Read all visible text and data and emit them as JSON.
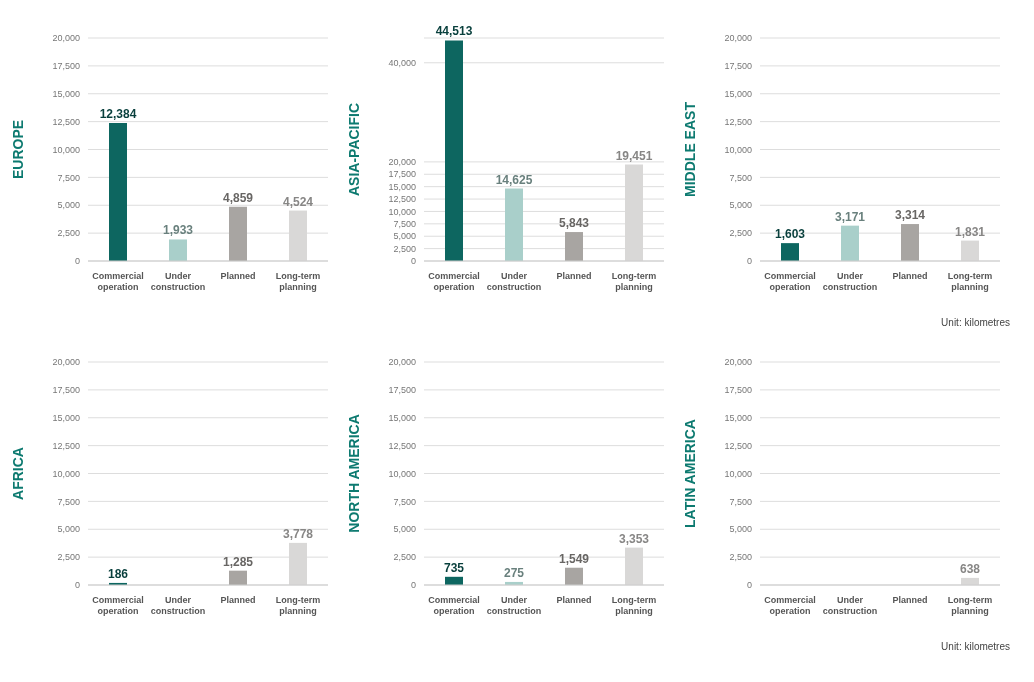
{
  "chart_data": [
    {
      "type": "bar",
      "ylabel": "EUROPE",
      "categories": [
        "Commercial operation",
        "Under construction",
        "Planned",
        "Long-term planning"
      ],
      "values": [
        12384,
        1933,
        4859,
        4524
      ],
      "value_labels": [
        "12,384",
        "1,933",
        "4,859",
        "4,524"
      ],
      "colors": [
        "#0d6660",
        "#a9cfca",
        "#a8a5a2",
        "#d9d8d7"
      ],
      "ylim": [
        0,
        20000
      ],
      "yticks": [
        {
          "value": 0,
          "label": "0"
        },
        {
          "value": 2500,
          "label": "2,500"
        },
        {
          "value": 5000,
          "label": "5,000"
        },
        {
          "value": 7500,
          "label": "7,500"
        },
        {
          "value": 10000,
          "label": "10,000"
        },
        {
          "value": 12500,
          "label": "12,500"
        },
        {
          "value": 15000,
          "label": "15,000"
        },
        {
          "value": 17500,
          "label": "17,500"
        },
        {
          "value": 20000,
          "label": "20,000"
        }
      ],
      "grid": "y"
    },
    {
      "type": "bar",
      "ylabel": "ASIA-PACIFIC",
      "categories": [
        "Commercial operation",
        "Under construction",
        "Planned",
        "Long-term planning"
      ],
      "values": [
        44513,
        14625,
        5843,
        19451
      ],
      "value_labels": [
        "44,513",
        "14,625",
        "5,843",
        "19,451"
      ],
      "colors": [
        "#0d6660",
        "#a9cfca",
        "#a8a5a2",
        "#d9d8d7"
      ],
      "ylim": [
        0,
        45000
      ],
      "yticks": [
        {
          "value": 0,
          "label": "0"
        },
        {
          "value": 2500,
          "label": "2,500"
        },
        {
          "value": 5000,
          "label": "5,000"
        },
        {
          "value": 7500,
          "label": "7,500"
        },
        {
          "value": 10000,
          "label": "10,000"
        },
        {
          "value": 12500,
          "label": "12,500"
        },
        {
          "value": 15000,
          "label": "15,000"
        },
        {
          "value": 17500,
          "label": "17,500"
        },
        {
          "value": 20000,
          "label": "20,000"
        },
        {
          "value": 40000,
          "label": "40,000"
        }
      ],
      "grid": "y"
    },
    {
      "type": "bar",
      "ylabel": "MIDDLE EAST",
      "categories": [
        "Commercial operation",
        "Under construction",
        "Planned",
        "Long-term planning"
      ],
      "values": [
        1603,
        3171,
        3314,
        1831
      ],
      "value_labels": [
        "1,603",
        "3,171",
        "3,314",
        "1,831"
      ],
      "colors": [
        "#0d6660",
        "#a9cfca",
        "#a8a5a2",
        "#d9d8d7"
      ],
      "ylim": [
        0,
        20000
      ],
      "yticks": [
        {
          "value": 0,
          "label": "0"
        },
        {
          "value": 2500,
          "label": "2,500"
        },
        {
          "value": 5000,
          "label": "5,000"
        },
        {
          "value": 7500,
          "label": "7,500"
        },
        {
          "value": 10000,
          "label": "10,000"
        },
        {
          "value": 12500,
          "label": "12,500"
        },
        {
          "value": 15000,
          "label": "15,000"
        },
        {
          "value": 17500,
          "label": "17,500"
        },
        {
          "value": 20000,
          "label": "20,000"
        }
      ],
      "grid": "y",
      "annotations": [
        "Unit: kilometres"
      ]
    },
    {
      "type": "bar",
      "ylabel": "AFRICA",
      "categories": [
        "Commercial operation",
        "Under construction",
        "Planned",
        "Long-term planning"
      ],
      "values": [
        186,
        0,
        1285,
        3778
      ],
      "value_labels": [
        "186",
        null,
        "1,285",
        "3,778"
      ],
      "colors": [
        "#0d6660",
        "#a9cfca",
        "#a8a5a2",
        "#d9d8d7"
      ],
      "ylim": [
        0,
        20000
      ],
      "yticks": [
        {
          "value": 0,
          "label": "0"
        },
        {
          "value": 2500,
          "label": "2,500"
        },
        {
          "value": 5000,
          "label": "5,000"
        },
        {
          "value": 7500,
          "label": "7,500"
        },
        {
          "value": 10000,
          "label": "10,000"
        },
        {
          "value": 12500,
          "label": "12,500"
        },
        {
          "value": 15000,
          "label": "15,000"
        },
        {
          "value": 17500,
          "label": "17,500"
        },
        {
          "value": 20000,
          "label": "20,000"
        }
      ],
      "grid": "y"
    },
    {
      "type": "bar",
      "ylabel": "NORTH AMERICA",
      "categories": [
        "Commercial operation",
        "Under construction",
        "Planned",
        "Long-term planning"
      ],
      "values": [
        735,
        275,
        1549,
        3353
      ],
      "value_labels": [
        "735",
        "275",
        "1,549",
        "3,353"
      ],
      "colors": [
        "#0d6660",
        "#a9cfca",
        "#a8a5a2",
        "#d9d8d7"
      ],
      "ylim": [
        0,
        20000
      ],
      "yticks": [
        {
          "value": 0,
          "label": "0"
        },
        {
          "value": 2500,
          "label": "2,500"
        },
        {
          "value": 5000,
          "label": "5,000"
        },
        {
          "value": 7500,
          "label": "7,500"
        },
        {
          "value": 10000,
          "label": "10,000"
        },
        {
          "value": 12500,
          "label": "12,500"
        },
        {
          "value": 15000,
          "label": "15,000"
        },
        {
          "value": 17500,
          "label": "17,500"
        },
        {
          "value": 20000,
          "label": "20,000"
        }
      ],
      "grid": "y"
    },
    {
      "type": "bar",
      "ylabel": "LATIN AMERICA",
      "categories": [
        "Commercial operation",
        "Under construction",
        "Planned",
        "Long-term planning"
      ],
      "values": [
        0,
        0,
        0,
        638
      ],
      "value_labels": [
        null,
        null,
        null,
        "638"
      ],
      "colors": [
        "#0d6660",
        "#a9cfca",
        "#a8a5a2",
        "#d9d8d7"
      ],
      "ylim": [
        0,
        20000
      ],
      "yticks": [
        {
          "value": 0,
          "label": "0"
        },
        {
          "value": 2500,
          "label": "2,500"
        },
        {
          "value": 5000,
          "label": "5,000"
        },
        {
          "value": 7500,
          "label": "7,500"
        },
        {
          "value": 10000,
          "label": "10,000"
        },
        {
          "value": 12500,
          "label": "12,500"
        },
        {
          "value": 15000,
          "label": "15,000"
        },
        {
          "value": 17500,
          "label": "17,500"
        },
        {
          "value": 20000,
          "label": "20,000"
        }
      ],
      "grid": "y",
      "annotations": [
        "Unit: kilometres"
      ]
    }
  ]
}
